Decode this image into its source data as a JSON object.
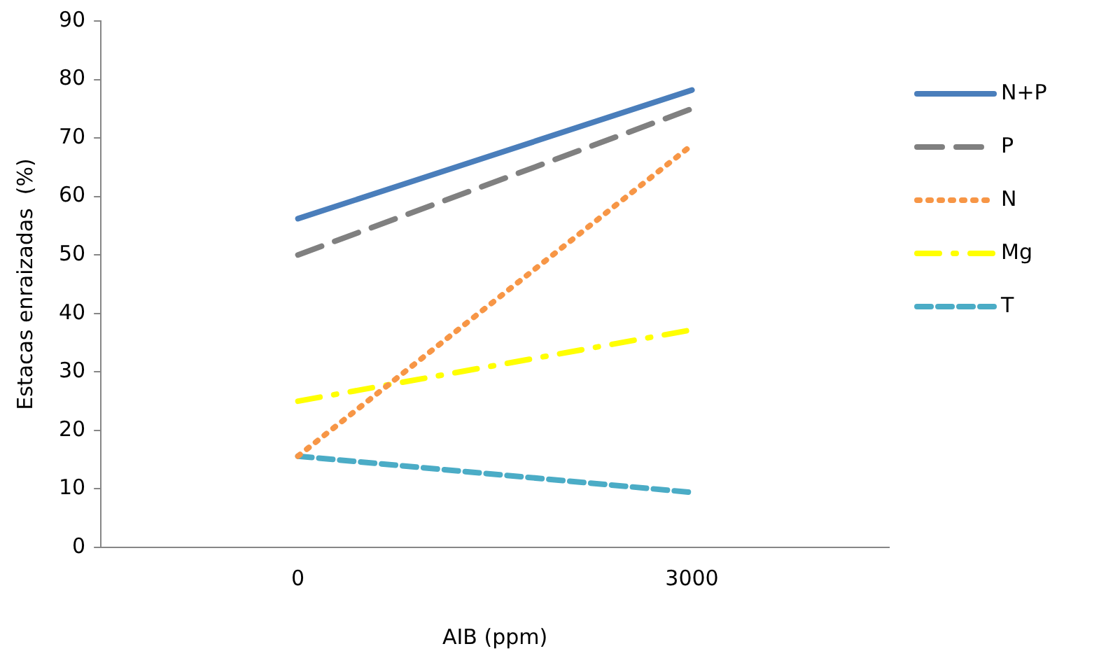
{
  "chart_data": {
    "type": "line",
    "xlabel": "AIB (ppm)",
    "ylabel": "Estacas enraizadas  (%)",
    "categories": [
      "0",
      "3000"
    ],
    "series": [
      {
        "name": "N+P",
        "color": "#4a7ebb",
        "values": [
          56.2,
          78.2
        ],
        "line_style": "solid"
      },
      {
        "name": "P",
        "color": "#808080",
        "values": [
          50,
          75
        ],
        "line_style": "dashed"
      },
      {
        "name": "N",
        "color": "#f79646",
        "values": [
          15.6,
          68.8
        ],
        "line_style": "dotted"
      },
      {
        "name": "Mg",
        "color": "#ffff00",
        "values": [
          25,
          37.2
        ],
        "line_style": "dashdot"
      },
      {
        "name": "T",
        "color": "#4bacc6",
        "values": [
          15.6,
          9.4
        ],
        "line_style": "shortdash"
      }
    ],
    "ylim": [
      0,
      90
    ],
    "yticks": [
      0,
      10,
      20,
      30,
      40,
      50,
      60,
      70,
      80,
      90
    ],
    "grid": false,
    "legend": "right",
    "marker": "none"
  }
}
